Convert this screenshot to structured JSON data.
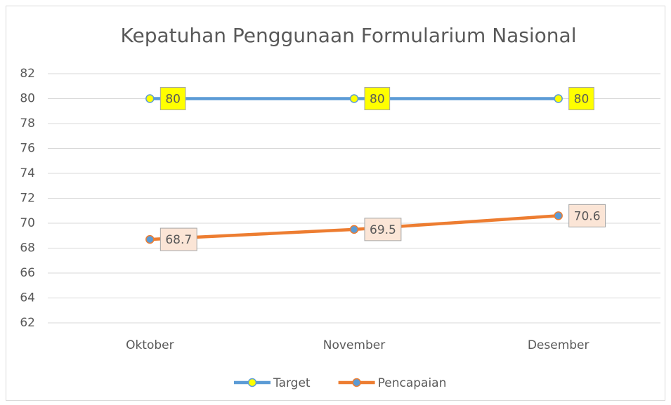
{
  "chart_data": {
    "type": "line",
    "title": "Kepatuhan Penggunaan Formularium Nasional",
    "categories": [
      "Oktober",
      "November",
      "Desember"
    ],
    "series": [
      {
        "name": "Target",
        "color": "#5b9bd5",
        "marker_fill": "#ffff00",
        "label_fill": "#ffff00",
        "values": [
          80,
          80,
          80
        ]
      },
      {
        "name": "Pencapaian",
        "color": "#ed7d31",
        "marker_fill": "#5b9bd5",
        "label_fill": "#fbe5d6",
        "values": [
          68.7,
          69.5,
          70.6
        ]
      }
    ],
    "ylim": [
      62,
      82
    ],
    "yticks": [
      62,
      64,
      66,
      68,
      70,
      72,
      74,
      76,
      78,
      80,
      82
    ],
    "grid": true,
    "legend": "bottom"
  }
}
